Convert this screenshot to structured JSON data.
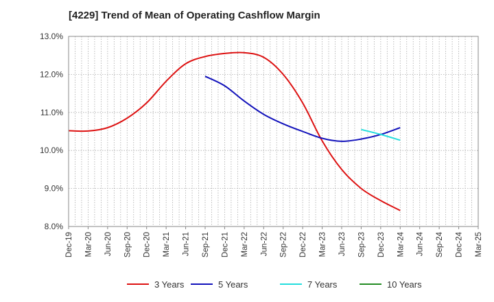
{
  "chart_data": {
    "type": "line",
    "title": "[4229]  Trend of Mean of Operating Cashflow Margin",
    "xlabel": "",
    "ylabel": "",
    "ylim": [
      8.0,
      13.0
    ],
    "y_ticks": [
      8.0,
      9.0,
      10.0,
      11.0,
      12.0,
      13.0
    ],
    "y_tick_labels": [
      "8.0%",
      "9.0%",
      "10.0%",
      "11.0%",
      "12.0%",
      "13.0%"
    ],
    "categories": [
      "Dec-19",
      "Mar-20",
      "Jun-20",
      "Sep-20",
      "Dec-20",
      "Mar-21",
      "Jun-21",
      "Sep-21",
      "Dec-21",
      "Mar-22",
      "Jun-22",
      "Sep-22",
      "Dec-22",
      "Mar-23",
      "Jun-23",
      "Sep-23",
      "Dec-23",
      "Mar-24",
      "Jun-24",
      "Sep-24",
      "Dec-24",
      "Mar-25"
    ],
    "grid": true,
    "legend_position": "bottom",
    "series": [
      {
        "name": "3 Years",
        "color": "#dd1111",
        "values": [
          10.52,
          10.51,
          10.6,
          10.85,
          11.25,
          11.82,
          12.28,
          12.47,
          12.55,
          12.57,
          12.45,
          12.0,
          11.25,
          10.25,
          9.5,
          9.0,
          8.68,
          8.42,
          null,
          null,
          null,
          null
        ]
      },
      {
        "name": "5 Years",
        "color": "#1111bb",
        "values": [
          null,
          null,
          null,
          null,
          null,
          null,
          null,
          11.95,
          11.7,
          11.3,
          10.95,
          10.7,
          10.5,
          10.32,
          10.24,
          10.3,
          10.42,
          10.6,
          null,
          null,
          null,
          null
        ]
      },
      {
        "name": "7 Years",
        "color": "#22dddd",
        "values": [
          null,
          null,
          null,
          null,
          null,
          null,
          null,
          null,
          null,
          null,
          null,
          null,
          null,
          null,
          null,
          10.55,
          10.42,
          10.27,
          null,
          null,
          null,
          null
        ]
      },
      {
        "name": "10 Years",
        "color": "#228b22",
        "values": [
          null,
          null,
          null,
          null,
          null,
          null,
          null,
          null,
          null,
          null,
          null,
          null,
          null,
          null,
          null,
          null,
          null,
          null,
          null,
          null,
          null,
          null
        ]
      }
    ]
  }
}
